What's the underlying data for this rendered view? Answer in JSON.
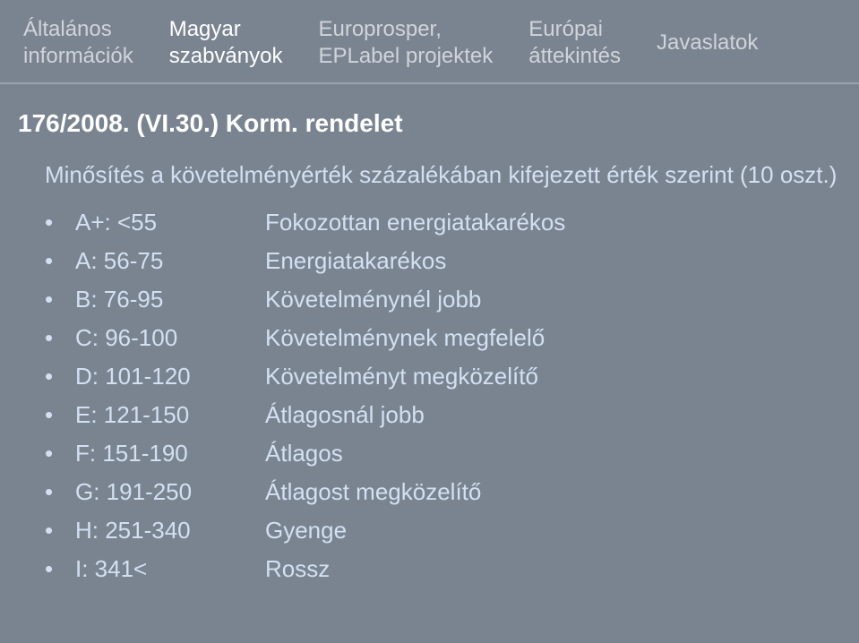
{
  "colors": {
    "background": "#7a8490",
    "tab_inactive": "#d0d4da",
    "tab_active": "#ffffff",
    "tab_border": "#9aa2ac",
    "heading": "#ffffff",
    "body_text": "#d3e0f2"
  },
  "typography": {
    "font_family": "Arial, Helvetica, sans-serif",
    "tab_fontsize": 24,
    "heading_fontsize": 28,
    "heading_weight": 700,
    "body_fontsize": 26
  },
  "tabs": [
    {
      "label": "Általános\ninformációk",
      "active": false
    },
    {
      "label": "Magyar\nszabványok",
      "active": true
    },
    {
      "label": "Europrosper,\nEPLabel projektek",
      "active": false
    },
    {
      "label": "Európai\náttekintés",
      "active": false
    },
    {
      "label": "Javaslatok",
      "active": false
    }
  ],
  "heading": "176/2008. (VI.30.) Korm. rendelet",
  "subtitle": "Minősítés a követelményérték százalékában kifejezett érték szerint  (10 oszt.)",
  "bullet": "•",
  "ratings": [
    {
      "code": "A+: <55",
      "desc": "Fokozottan energiatakarékos"
    },
    {
      "code": "A:  56-75",
      "desc": "Energiatakarékos"
    },
    {
      "code": "B:  76-95",
      "desc": "Követelménynél jobb"
    },
    {
      "code": "C:  96-100",
      "desc": "Követelménynek megfelelő"
    },
    {
      "code": "D:  101-120",
      "desc": "Követelményt megközelítő"
    },
    {
      "code": "E:  121-150",
      "desc": "Átlagosnál jobb"
    },
    {
      "code": "F:  151-190",
      "desc": "Átlagos"
    },
    {
      "code": "G:  191-250",
      "desc": "Átlagost megközelítő"
    },
    {
      "code": "H:  251-340",
      "desc": "Gyenge"
    },
    {
      "code": " I:  341<",
      "desc": "Rossz"
    }
  ]
}
